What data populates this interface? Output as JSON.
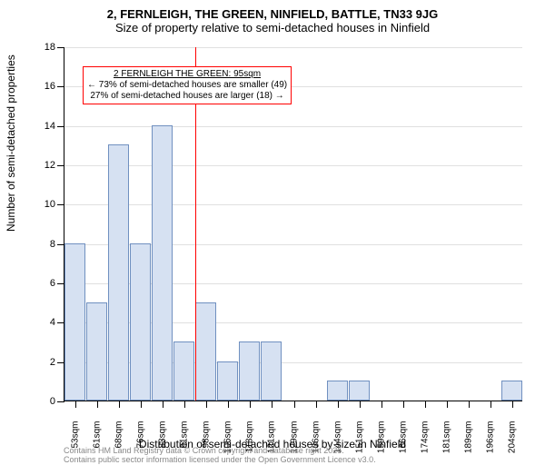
{
  "titles": {
    "line1": "2, FERNLEIGH, THE GREEN, NINFIELD, BATTLE, TN33 9JG",
    "line2": "Size of property relative to semi-detached houses in Ninfield"
  },
  "chart": {
    "type": "histogram",
    "bar_color": "#d6e1f2",
    "bar_border_color": "#7090c0",
    "background_color": "#ffffff",
    "grid_color": "#e0e0e0",
    "axis_color": "#000000",
    "ylim": [
      0,
      18
    ],
    "ytick_step": 2,
    "yticks": [
      0,
      2,
      4,
      6,
      8,
      10,
      12,
      14,
      16,
      18
    ],
    "x_categories": [
      "53sqm",
      "61sqm",
      "68sqm",
      "76sqm",
      "83sqm",
      "91sqm",
      "98sqm",
      "106sqm",
      "113sqm",
      "121sqm",
      "129sqm",
      "136sqm",
      "144sqm",
      "151sqm",
      "159sqm",
      "166sqm",
      "174sqm",
      "181sqm",
      "189sqm",
      "196sqm",
      "204sqm"
    ],
    "values": [
      8,
      5,
      13,
      8,
      14,
      3,
      5,
      2,
      3,
      3,
      0,
      0,
      1,
      1,
      0,
      0,
      0,
      0,
      0,
      0,
      1
    ],
    "bar_width_ratio": 1.0,
    "vline_position": 95,
    "vline_color": "#ff0000",
    "x_domain": [
      50,
      208
    ]
  },
  "axis_labels": {
    "x": "Distribution of semi-detached houses by size in Ninfield",
    "y": "Number of semi-detached properties"
  },
  "annotation": {
    "title": "2 FERNLEIGH THE GREEN: 95sqm",
    "line1": "← 73% of semi-detached houses are smaller (49)",
    "line2": "27% of semi-detached houses are larger (18) →",
    "border_color": "#ff0000",
    "background_color": "#ffffff",
    "font_size": 10,
    "position_bar_index": 5.6,
    "position_y_value": 16.2
  },
  "footer": {
    "line1": "Contains HM Land Registry data © Crown copyright and database right 2025.",
    "line2": "Contains public sector information licensed under the Open Government Licence v3.0."
  }
}
